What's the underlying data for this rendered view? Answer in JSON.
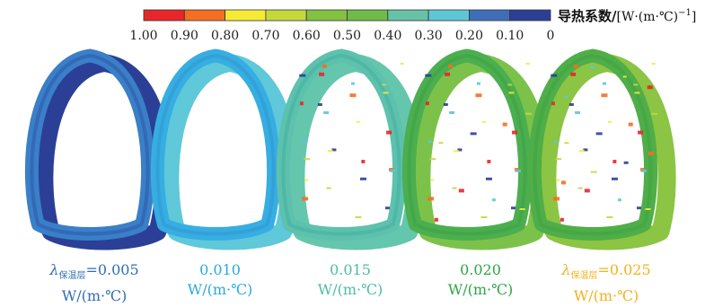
{
  "legend": {
    "title_cn": "导热系数/",
    "title_unit": "[W·(m·℃)",
    "title_unit_sup": "−1",
    "title_unit_end": "]",
    "ticks": [
      "1.00",
      "0.90",
      "0.80",
      "0.70",
      "0.60",
      "0.50",
      "0.40",
      "0.30",
      "0.20",
      "0.10",
      "0"
    ],
    "colors": [
      "#e8262a",
      "#f36f22",
      "#f6ea37",
      "#c4d83c",
      "#84c042",
      "#6fbb47",
      "#66c2a6",
      "#5ec7d6",
      "#3f6eb8",
      "#2c3f97"
    ]
  },
  "panels": [
    {
      "symbol": "λ",
      "subscript": "保温层",
      "value_prefix": "=",
      "value": "0.005",
      "unit": "W/(m·℃)",
      "color": "#2f6db5",
      "ring_outer": "#3a7fc7",
      "ring_inner": "#2a56a8",
      "ring_side": "#2c3f97",
      "has_patches": false
    },
    {
      "symbol": "",
      "subscript": "",
      "value_prefix": "",
      "value": "0.010",
      "unit": "W/(m·℃)",
      "color": "#2aa9dd",
      "ring_outer": "#37aee2",
      "ring_inner": "#2f93cf",
      "ring_side": "#5fc8d9",
      "has_patches": false
    },
    {
      "symbol": "",
      "subscript": "",
      "value_prefix": "",
      "value": "0.015",
      "unit": "W/(m·℃)",
      "color": "#4cbca4",
      "ring_outer": "#5ec1ad",
      "ring_inner": "#3eb0a0",
      "ring_side": "#64c6ad",
      "has_patches": true
    },
    {
      "symbol": "",
      "subscript": "",
      "value_prefix": "",
      "value": "0.020",
      "unit": "W/(m·℃)",
      "color": "#2ea545",
      "ring_outer": "#4caf4f",
      "ring_inner": "#3a9e44",
      "ring_side": "#7cc24a",
      "has_patches": true
    },
    {
      "symbol": "λ",
      "subscript": "保温层",
      "value_prefix": "=",
      "value": "0.025",
      "unit": "W/(m·℃)",
      "color": "#f2b21e",
      "ring_outer": "#4fae48",
      "ring_inner": "#3b9f42",
      "ring_side": "#8cc443",
      "has_patches": true
    }
  ]
}
